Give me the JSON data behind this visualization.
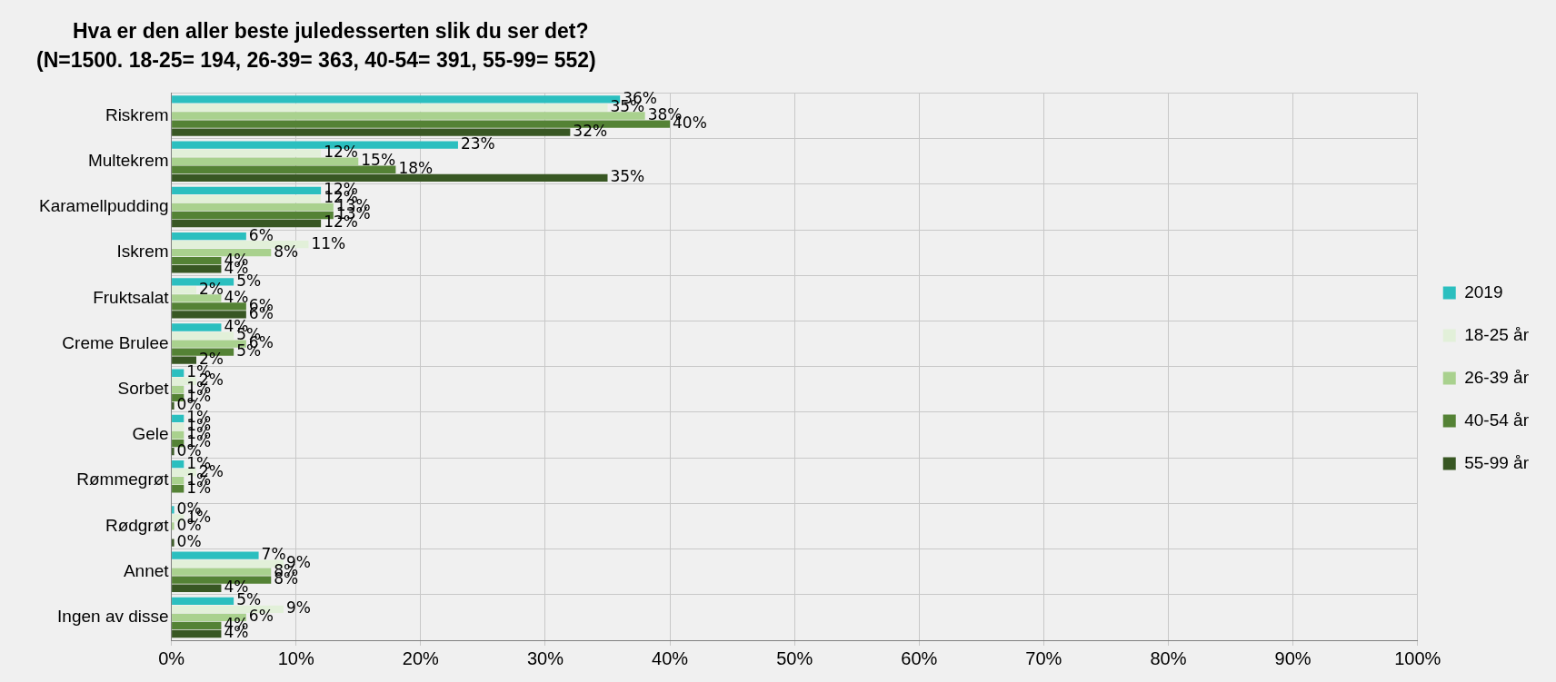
{
  "chart_data": {
    "type": "bar",
    "orientation": "horizontal",
    "title": "Hva er den aller beste juledesserten slik du ser det?",
    "subtitle": "(N=1500. 18-25= 194, 26-39= 363, 40-54= 391, 55-99= 552)",
    "categories": [
      "Riskrem",
      "Multekrem",
      "Karamellpudding",
      "Iskrem",
      "Fruktsalat",
      "Creme Brulee",
      "Sorbet",
      "Gele",
      "Rømmegrøt",
      "Rødgrøt",
      "Annet",
      "Ingen av disse"
    ],
    "series": [
      {
        "name": "2019",
        "color": "#2bbfbf",
        "values": [
          36,
          23,
          12,
          6,
          5,
          4,
          1,
          1,
          1,
          0,
          7,
          5
        ],
        "value_labels": [
          "36%",
          "23%",
          "12%",
          "6%",
          "5%",
          "4%",
          "1%",
          "1%",
          "1%",
          "0%",
          "7%",
          "5%"
        ]
      },
      {
        "name": "18-25 år",
        "color": "#e2f0d9",
        "values": [
          35,
          12,
          12,
          11,
          2,
          5,
          2,
          1,
          2,
          1,
          9,
          9
        ],
        "value_labels": [
          "35%",
          "12%",
          "12%",
          "11%",
          "2%",
          "5%",
          "2%",
          "1%",
          "2%",
          "1%",
          "9%",
          "9%"
        ]
      },
      {
        "name": "26-39 år",
        "color": "#a9d18e",
        "values": [
          38,
          15,
          13,
          8,
          4,
          6,
          1,
          1,
          1,
          0,
          8,
          6
        ],
        "value_labels": [
          "38%",
          "15%",
          "13%",
          "8%",
          "4%",
          "6%",
          "1%",
          "1%",
          "1%",
          "0%",
          "8%",
          "6%"
        ]
      },
      {
        "name": "40-54 år",
        "color": "#548235",
        "values": [
          40,
          18,
          13,
          4,
          6,
          5,
          1,
          1,
          1,
          null,
          8,
          4
        ],
        "value_labels": [
          "40%",
          "18%",
          "13%",
          "4%",
          "6%",
          "5%",
          "1%",
          "1%",
          "1%",
          null,
          "8%",
          "4%"
        ]
      },
      {
        "name": "55-99 år",
        "color": "#385723",
        "values": [
          32,
          35,
          12,
          4,
          6,
          2,
          0,
          0,
          null,
          0,
          4,
          4
        ],
        "value_labels": [
          "32%",
          "35%",
          "12%",
          "4%",
          "6%",
          "2%",
          "0%",
          "0%",
          null,
          "0%",
          "4%",
          "4%"
        ]
      }
    ],
    "xlim": [
      0,
      100
    ],
    "xticks": [
      {
        "value": 0,
        "label": "0%"
      },
      {
        "value": 10,
        "label": "10%"
      },
      {
        "value": 20,
        "label": "20%"
      },
      {
        "value": 30,
        "label": "30%"
      },
      {
        "value": 40,
        "label": "40%"
      },
      {
        "value": 50,
        "label": "50%"
      },
      {
        "value": 60,
        "label": "60%"
      },
      {
        "value": 70,
        "label": "70%"
      },
      {
        "value": 80,
        "label": "80%"
      },
      {
        "value": 90,
        "label": "90%"
      },
      {
        "value": 100,
        "label": "100%"
      }
    ],
    "grid": true,
    "legend": "right"
  }
}
